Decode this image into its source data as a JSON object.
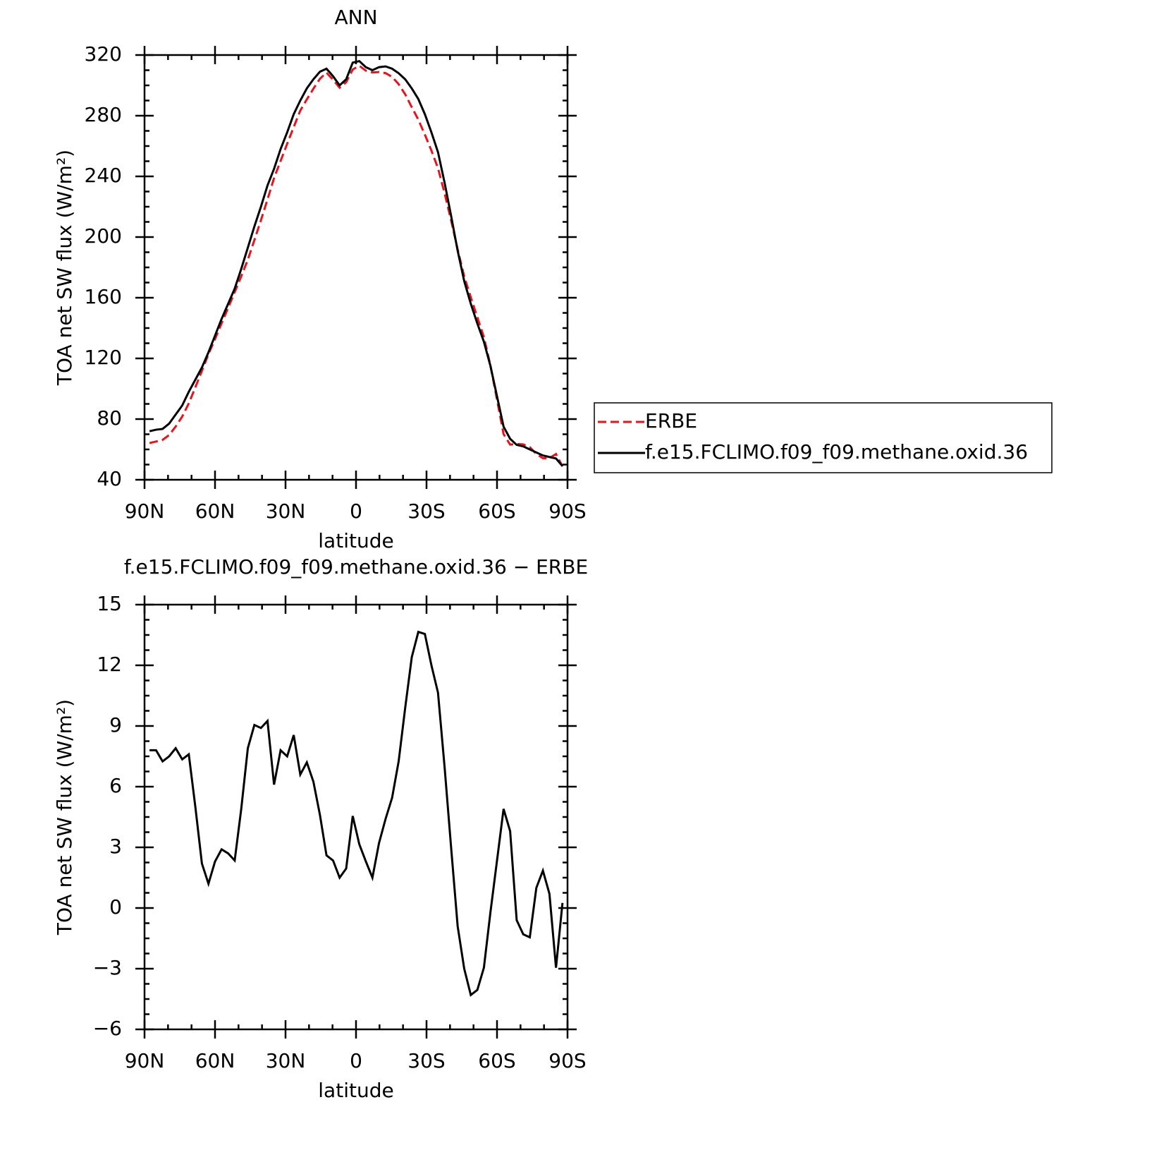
{
  "chart_data": [
    {
      "type": "line",
      "title": "ANN",
      "xlabel": "latitude",
      "ylabel": "TOA net SW flux (W/m²)",
      "x": [
        87.86,
        85.1,
        82.31,
        79.53,
        76.74,
        73.95,
        71.16,
        68.37,
        65.58,
        62.79,
        60.0,
        57.21,
        54.42,
        51.63,
        48.84,
        46.04,
        43.25,
        40.46,
        37.67,
        34.88,
        32.09,
        29.3,
        26.51,
        23.72,
        20.93,
        18.14,
        15.35,
        12.56,
        9.77,
        6.98,
        4.19,
        1.4,
        -1.4,
        -4.19,
        -6.98,
        -9.77,
        -12.56,
        -15.35,
        -18.14,
        -20.93,
        -23.72,
        -26.51,
        -29.3,
        -32.09,
        -34.88,
        -37.67,
        -40.46,
        -43.25,
        -46.04,
        -48.84,
        -51.63,
        -54.42,
        -57.21,
        -60.0,
        -62.79,
        -65.58,
        -68.37,
        -71.16,
        -73.95,
        -76.74,
        -79.53,
        -82.31,
        -85.1,
        -87.86
      ],
      "series": [
        {
          "name": "ERBE",
          "color": "#e8141b",
          "linestyle": "dashed",
          "values": [
            64.2,
            65.2,
            66.3,
            69.5,
            75.1,
            81.7,
            90.4,
            101,
            111.8,
            122.8,
            132.7,
            143.1,
            153.3,
            163.7,
            174.1,
            185.1,
            198,
            211.1,
            224.8,
            238.9,
            250.2,
            261.5,
            272.5,
            283.4,
            290.8,
            297.8,
            304.4,
            308.4,
            303.7,
            298.5,
            302.1,
            310.5,
            312.9,
            309.7,
            308.5,
            308.8,
            308.1,
            305.6,
            300.8,
            294.1,
            285.6,
            277.4,
            267.5,
            257,
            245.4,
            229,
            211,
            191.9,
            174,
            160.3,
            147.1,
            134,
            115.2,
            92.7,
            70.1,
            63.2,
            63.6,
            63.3,
            61.5,
            57,
            54.2,
            54.3,
            57,
            48.8
          ]
        },
        {
          "name": "f.e15.FCLIMO.f09_f09.methane.oxid.36",
          "color": "#000000",
          "linestyle": "solid",
          "values": [
            72,
            73,
            73.5,
            77,
            83,
            89,
            98,
            106,
            114,
            124,
            135,
            146,
            156,
            166,
            179,
            193,
            207,
            220,
            234,
            245,
            258,
            269,
            281,
            290,
            298,
            304,
            309,
            311,
            306,
            300,
            304,
            315,
            316,
            312,
            310,
            312,
            312.5,
            311,
            308,
            304,
            298,
            291,
            281,
            269,
            256,
            236,
            214,
            191,
            171,
            156,
            143,
            131,
            115,
            95,
            75,
            67,
            63,
            62,
            60,
            58,
            56,
            55,
            54,
            49
          ]
        }
      ],
      "xlim": [
        90,
        -90
      ],
      "ylim": [
        40,
        320
      ],
      "xticks": [
        {
          "value": 90,
          "label": "90N"
        },
        {
          "value": 60,
          "label": "60N"
        },
        {
          "value": 30,
          "label": "30N"
        },
        0,
        {
          "value": -30,
          "label": "30S"
        },
        {
          "value": -60,
          "label": "60S"
        },
        {
          "value": -90,
          "label": "90S"
        }
      ],
      "yticks": [
        40,
        80,
        120,
        160,
        200,
        240,
        280,
        320
      ],
      "legend": "outside-right"
    },
    {
      "type": "line",
      "title": "f.e15.FCLIMO.f09_f09.methane.oxid.36 − ERBE",
      "xlabel": "latitude",
      "ylabel": "TOA net SW flux (W/m²)",
      "x": [
        87.86,
        85.1,
        82.31,
        79.53,
        76.74,
        73.95,
        71.16,
        68.37,
        65.58,
        62.79,
        60.0,
        57.21,
        54.42,
        51.63,
        48.84,
        46.04,
        43.25,
        40.46,
        37.67,
        34.88,
        32.09,
        29.3,
        26.51,
        23.72,
        20.93,
        18.14,
        15.35,
        12.56,
        9.77,
        6.98,
        4.19,
        1.4,
        -1.4,
        -4.19,
        -6.98,
        -9.77,
        -12.56,
        -15.35,
        -18.14,
        -20.93,
        -23.72,
        -26.51,
        -29.3,
        -32.09,
        -34.88,
        -37.67,
        -40.46,
        -43.25,
        -46.04,
        -48.84,
        -51.63,
        -54.42,
        -57.21,
        -60.0,
        -62.79,
        -65.58,
        -68.37,
        -71.16,
        -73.95,
        -76.74,
        -79.53,
        -82.31,
        -85.1,
        -87.86
      ],
      "series": [
        {
          "color": "#000000",
          "linestyle": "solid",
          "values": [
            7.8,
            7.8,
            7.25,
            7.5,
            7.9,
            7.35,
            7.6,
            5.0,
            2.2,
            1.2,
            2.3,
            2.9,
            2.7,
            2.35,
            4.9,
            7.9,
            9.05,
            8.9,
            9.25,
            6.1,
            7.8,
            7.5,
            8.55,
            6.6,
            7.2,
            6.25,
            4.6,
            2.6,
            2.35,
            1.5,
            1.95,
            4.55,
            3.15,
            2.3,
            1.5,
            3.2,
            4.4,
            5.45,
            7.25,
            9.9,
            12.4,
            13.65,
            13.55,
            12.0,
            10.65,
            7.0,
            3.0,
            -0.9,
            -3.0,
            -4.3,
            -4.05,
            -2.95,
            -0.2,
            2.35,
            4.9,
            3.8,
            -0.6,
            -1.3,
            -1.45,
            1.0,
            1.85,
            0.7,
            -2.95,
            0.25
          ]
        }
      ],
      "xlim": [
        90,
        -90
      ],
      "ylim": [
        -6,
        15
      ],
      "xticks": [
        {
          "value": 90,
          "label": "90N"
        },
        {
          "value": 60,
          "label": "60N"
        },
        {
          "value": 30,
          "label": "30N"
        },
        0,
        {
          "value": -30,
          "label": "30S"
        },
        {
          "value": -60,
          "label": "60S"
        },
        {
          "value": -90,
          "label": "90S"
        }
      ],
      "yticks": [
        {
          "value": -6,
          "label": "−6"
        },
        {
          "value": -3,
          "label": "−3"
        },
        0,
        3,
        6,
        9,
        12,
        15
      ]
    }
  ]
}
